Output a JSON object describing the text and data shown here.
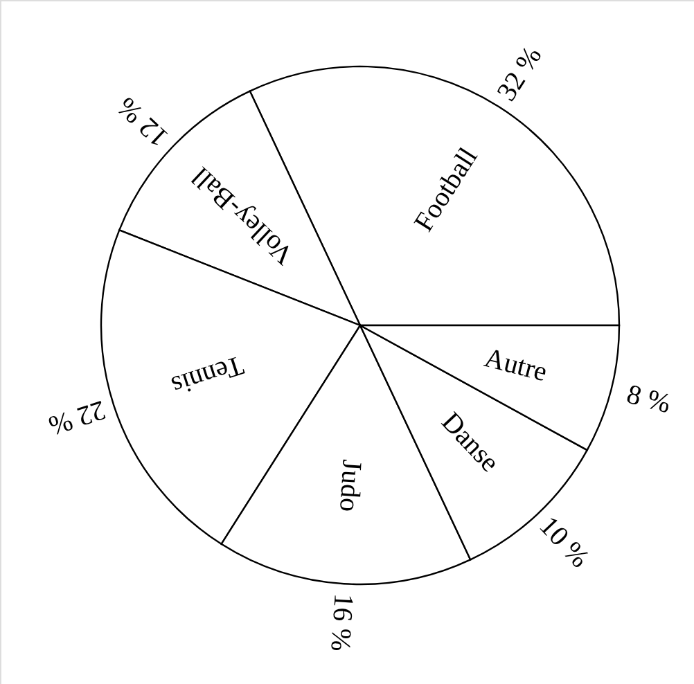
{
  "chart_data": {
    "type": "pie",
    "categories": [
      "Football",
      "Volley-Ball",
      "Tennis",
      "Judo",
      "Danse",
      "Autre"
    ],
    "values": [
      32,
      12,
      22,
      16,
      10,
      8
    ],
    "value_labels": [
      "32 %",
      "12 %",
      "22 %",
      "16 %",
      "10 %",
      "8 %"
    ],
    "colors": [
      "#ffffff",
      "#ffffff",
      "#ffffff",
      "#ffffff",
      "#ffffff",
      "#ffffff"
    ]
  }
}
